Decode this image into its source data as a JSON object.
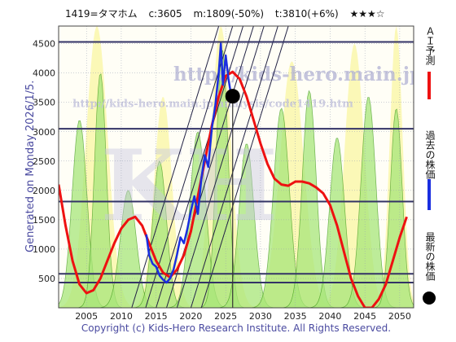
{
  "header": {
    "code": "1419=タマホム",
    "current": "c:3605",
    "min": "m:1809(-50%)",
    "target": "t:3810(+6%)",
    "stars": "★★★☆"
  },
  "watermark": {
    "url_large": "http://kids-hero.main.jp/",
    "url_small": "http://kids-hero.main.jp/analysis/code1419.htm",
    "logo": "KH"
  },
  "generated": "Generated on Monday 2026/1/5.",
  "footer": "Copyright (c) Kids-Hero Research Institute. All Rights Reserved.",
  "legend": {
    "forecast": "ＡＩ予測",
    "past": "過去の株価",
    "latest": "最新の株価"
  },
  "colors": {
    "forecast": "#ee1111",
    "past": "#1a2ee0",
    "latest": "#000000",
    "band_yellow": "#fbf7b0",
    "band_green": "#a8e67a",
    "line_green": "#3f9a1a",
    "horizontal": "#333366",
    "diagonal": "#222244"
  },
  "chart_data": {
    "type": "line",
    "x_ticks": [
      2005,
      2010,
      2015,
      2020,
      2025,
      2030,
      2035,
      2040,
      2045,
      2050
    ],
    "y_ticks": [
      500,
      1000,
      1500,
      2000,
      2500,
      3000,
      3500,
      4000,
      4500
    ],
    "xlim": [
      2001,
      2052
    ],
    "ylim": [
      0,
      4800
    ],
    "grid": true,
    "horizontal_levels": [
      4530,
      3050,
      1810,
      580,
      430
    ],
    "series": [
      {
        "name": "ＡＩ予測",
        "color": "#ee1111",
        "x": [
          2001,
          2002,
          2003,
          2004,
          2005,
          2006,
          2007,
          2008,
          2009,
          2010,
          2011,
          2012,
          2013,
          2014,
          2015,
          2016,
          2017,
          2018,
          2019,
          2020,
          2021,
          2022,
          2023,
          2024,
          2025,
          2026,
          2027,
          2028,
          2029,
          2030,
          2031,
          2032,
          2033,
          2034,
          2035,
          2036,
          2037,
          2038,
          2039,
          2040,
          2041,
          2042,
          2043,
          2044,
          2045,
          2046,
          2047,
          2048,
          2049,
          2050,
          2051
        ],
        "y": [
          2100,
          1400,
          800,
          400,
          250,
          300,
          500,
          800,
          1100,
          1350,
          1500,
          1550,
          1400,
          1100,
          800,
          600,
          520,
          650,
          900,
          1300,
          1900,
          2500,
          3100,
          3600,
          3950,
          4020,
          3900,
          3600,
          3200,
          2800,
          2450,
          2200,
          2100,
          2080,
          2150,
          2150,
          2120,
          2050,
          1950,
          1750,
          1400,
          950,
          500,
          200,
          0,
          0,
          150,
          400,
          800,
          1200,
          1550
        ]
      },
      {
        "name": "過去の株価",
        "color": "#1a2ee0",
        "x": [
          2013.6,
          2014.0,
          2014.5,
          2015.0,
          2015.5,
          2016.0,
          2016.5,
          2017.0,
          2017.5,
          2018.0,
          2018.5,
          2019.0,
          2019.5,
          2020.0,
          2020.5,
          2021.0,
          2021.5,
          2022.0,
          2022.5,
          2023.0,
          2023.5,
          2024.0,
          2024.3,
          2024.6,
          2025.0,
          2025.4,
          2025.8
        ],
        "y": [
          1250,
          900,
          750,
          700,
          550,
          480,
          430,
          500,
          650,
          900,
          1200,
          1100,
          1350,
          1650,
          1900,
          1600,
          2200,
          2600,
          2400,
          3050,
          3450,
          4000,
          4500,
          3800,
          4300,
          3900,
          3605
        ]
      }
    ],
    "latest": {
      "x": 2026.0,
      "y": 3605,
      "label": "最新の株価"
    }
  }
}
